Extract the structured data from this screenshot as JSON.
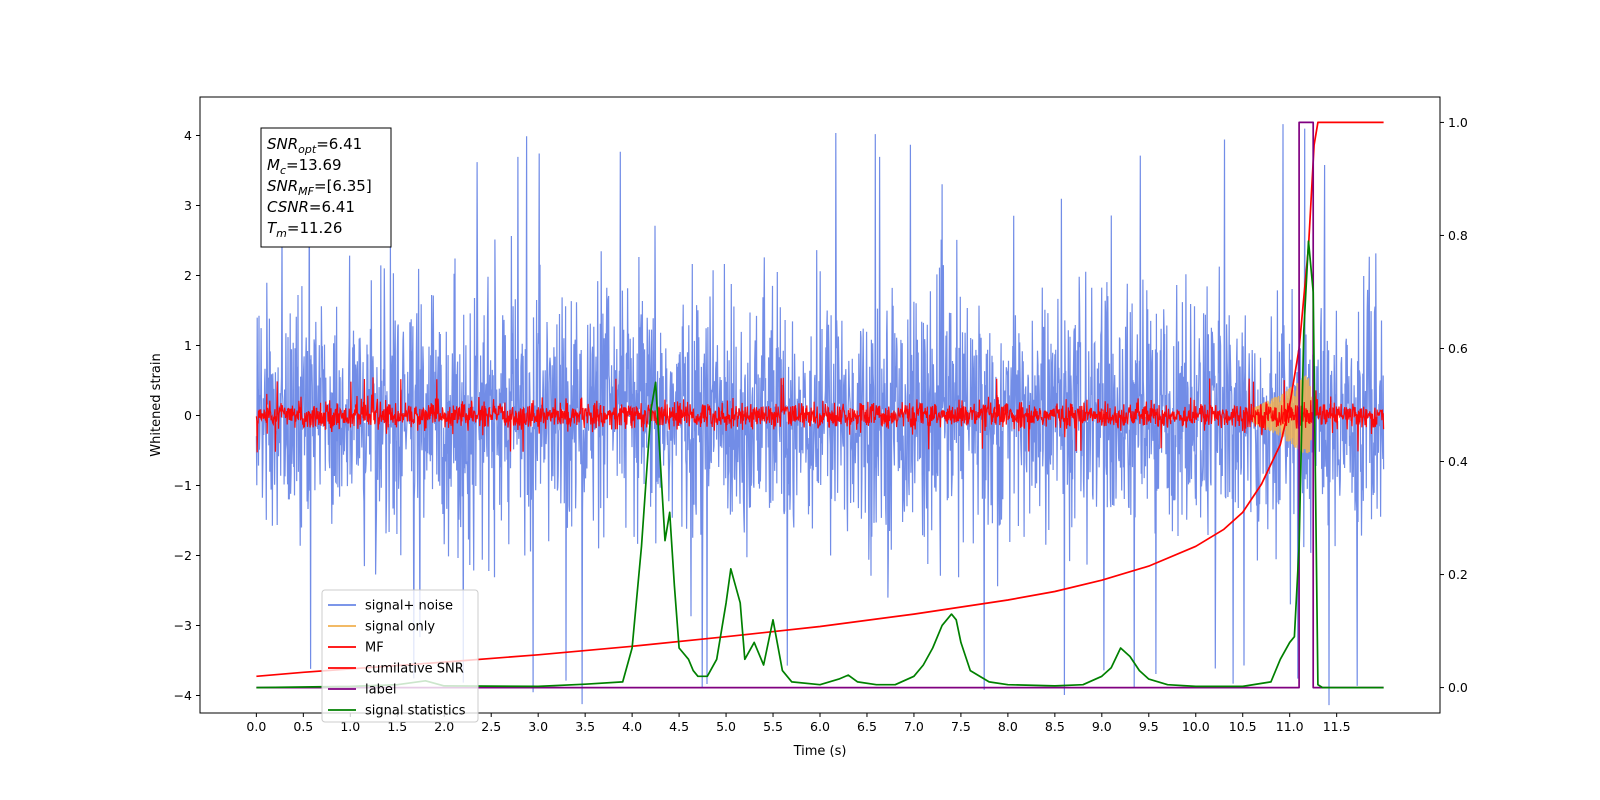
{
  "chart_data": {
    "type": "line",
    "xlabel": "Time (s)",
    "ylabel": "Whitened strain",
    "xlim": [
      -0.6,
      12.6
    ],
    "ylim": [
      -4.25,
      4.55
    ],
    "y2lim": [
      -0.045,
      1.045
    ],
    "x_ticks": [
      "0.0",
      "0.5",
      "1.0",
      "1.5",
      "2.0",
      "2.5",
      "3.0",
      "3.5",
      "4.0",
      "4.5",
      "5.0",
      "5.5",
      "6.0",
      "6.5",
      "7.0",
      "7.5",
      "8.0",
      "8.5",
      "9.0",
      "9.5",
      "10.0",
      "10.5",
      "11.0",
      "11.5"
    ],
    "y_ticks": [
      -4,
      -3,
      -2,
      -1,
      0,
      1,
      2,
      3,
      4
    ],
    "y2_ticks": [
      "0.0",
      "0.2",
      "0.4",
      "0.6",
      "0.8",
      "1.0"
    ],
    "legend_position": "lower-left",
    "grid": false,
    "info_box": {
      "lines": [
        {
          "base": "SNR",
          "sub": "opt",
          "rest": "=6.41"
        },
        {
          "base": "M",
          "sub": "c",
          "rest": "=13.69"
        },
        {
          "base": "SNR",
          "sub": "MF",
          "rest": "=[6.35]"
        },
        {
          "base": "CSNR",
          "sub": "",
          "rest": "=6.41"
        },
        {
          "base": "T",
          "sub": "m",
          "rest": "=11.26"
        }
      ]
    },
    "series": [
      {
        "name": "signal+ noise",
        "color": "#6a87e6",
        "axis": "left",
        "kind": "noise",
        "x_range": [
          0.0,
          12.0
        ],
        "spread": 1.2,
        "extreme": 4.2
      },
      {
        "name": "signal only",
        "color": "#f0b050",
        "axis": "left",
        "kind": "chirp",
        "x": [
          10.6,
          10.9,
          11.1,
          11.2,
          11.26
        ],
        "amplitude": [
          0.1,
          0.3,
          0.5,
          0.6,
          0.1
        ]
      },
      {
        "name": "MF",
        "color": "#ff0000",
        "axis": "left",
        "kind": "noise",
        "x_range": [
          0.0,
          12.0
        ],
        "spread": 0.13,
        "extreme": 0.55
      },
      {
        "name": "cumilative SNR",
        "color": "#ff0000",
        "axis": "right",
        "x": [
          0.0,
          0.5,
          1.0,
          2.0,
          3.0,
          4.0,
          5.0,
          6.0,
          7.0,
          8.0,
          8.5,
          9.0,
          9.5,
          10.0,
          10.3,
          10.5,
          10.7,
          10.9,
          11.0,
          11.1,
          11.2,
          11.26,
          11.3,
          12.0
        ],
        "y": [
          0.02,
          0.027,
          0.033,
          0.045,
          0.058,
          0.073,
          0.09,
          0.108,
          0.13,
          0.155,
          0.17,
          0.19,
          0.215,
          0.25,
          0.28,
          0.31,
          0.36,
          0.43,
          0.5,
          0.6,
          0.78,
          0.96,
          1.0,
          1.0
        ]
      },
      {
        "name": "label",
        "color": "#800080",
        "axis": "right",
        "x": [
          0.0,
          11.1,
          11.1,
          11.25,
          11.25,
          11.27,
          11.27,
          12.0
        ],
        "y": [
          0.0,
          0.0,
          1.0,
          1.0,
          0.0,
          0.0,
          0.0,
          0.0
        ]
      },
      {
        "name": "signal statistics",
        "color": "#008000",
        "axis": "right",
        "x": [
          0.0,
          1.0,
          1.5,
          1.8,
          2.0,
          3.0,
          3.5,
          3.9,
          4.0,
          4.1,
          4.2,
          4.25,
          4.3,
          4.35,
          4.4,
          4.45,
          4.5,
          4.6,
          4.65,
          4.7,
          4.8,
          4.9,
          5.0,
          5.05,
          5.1,
          5.15,
          5.2,
          5.3,
          5.4,
          5.5,
          5.6,
          5.7,
          6.0,
          6.2,
          6.3,
          6.4,
          6.6,
          6.8,
          7.0,
          7.1,
          7.2,
          7.3,
          7.4,
          7.45,
          7.5,
          7.6,
          7.8,
          8.0,
          8.5,
          8.8,
          9.0,
          9.1,
          9.2,
          9.3,
          9.4,
          9.5,
          9.7,
          10.0,
          10.5,
          10.8,
          10.9,
          11.0,
          11.05,
          11.1,
          11.15,
          11.2,
          11.25,
          11.3,
          11.35,
          11.5,
          12.0
        ],
        "y": [
          0.0,
          0.002,
          0.005,
          0.012,
          0.003,
          0.002,
          0.006,
          0.01,
          0.07,
          0.25,
          0.49,
          0.54,
          0.4,
          0.26,
          0.31,
          0.18,
          0.07,
          0.05,
          0.03,
          0.02,
          0.02,
          0.05,
          0.15,
          0.21,
          0.18,
          0.15,
          0.05,
          0.08,
          0.04,
          0.12,
          0.03,
          0.01,
          0.005,
          0.015,
          0.022,
          0.01,
          0.005,
          0.005,
          0.02,
          0.04,
          0.07,
          0.11,
          0.13,
          0.12,
          0.08,
          0.03,
          0.01,
          0.005,
          0.003,
          0.005,
          0.02,
          0.035,
          0.07,
          0.055,
          0.03,
          0.015,
          0.005,
          0.002,
          0.002,
          0.01,
          0.05,
          0.08,
          0.09,
          0.25,
          0.63,
          0.79,
          0.7,
          0.005,
          0.0,
          0.0,
          0.0
        ]
      }
    ]
  }
}
